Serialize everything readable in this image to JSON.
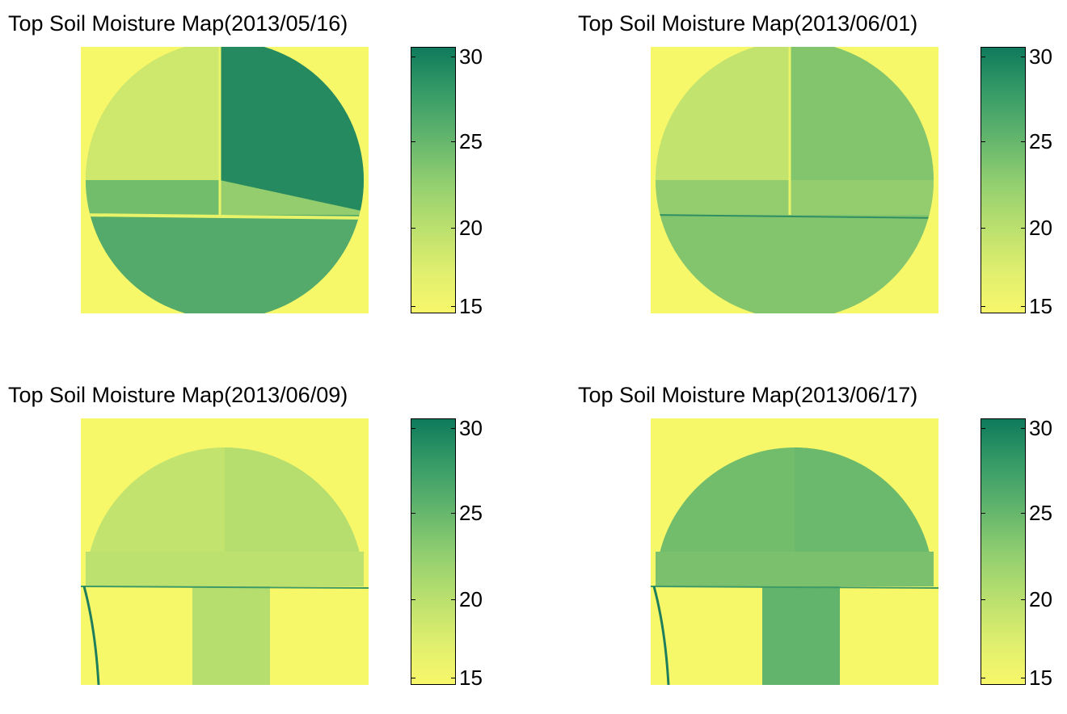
{
  "chart_data": [
    {
      "type": "heatmap",
      "title": "Top Soil Moisture Map(2013/05/16)",
      "colorbar": {
        "min": 14.5,
        "max": 30.5,
        "ticks": [
          "15",
          "20",
          "25",
          "30"
        ]
      },
      "colormap": [
        "#f7f76a",
        "#b8df6e",
        "#5fb36c",
        "#0f7a5c"
      ],
      "zones": {
        "circle": 22,
        "northeast": 29,
        "southhalf": 26,
        "strip": 24,
        "northwest": 18
      }
    },
    {
      "type": "heatmap",
      "title": "Top Soil Moisture Map(2013/06/01)",
      "colorbar": {
        "min": 14.5,
        "max": 30.5,
        "ticks": [
          "15",
          "20",
          "25",
          "30"
        ]
      },
      "colormap": [
        "#f7f76a",
        "#b8df6e",
        "#5fb36c",
        "#0f7a5c"
      ],
      "zones": {
        "circle": 20,
        "northeast": 23,
        "southhalf": 23,
        "strip": 22,
        "northwest": 19
      }
    },
    {
      "type": "heatmap",
      "title": "Top Soil Moisture Map(2013/06/09)",
      "colorbar": {
        "min": 14.5,
        "max": 30.5,
        "ticks": [
          "15",
          "20",
          "25",
          "30"
        ]
      },
      "colormap": [
        "#f7f76a",
        "#b8df6e",
        "#5fb36c",
        "#0f7a5c"
      ],
      "zones": {
        "northhalf": 19,
        "northeast": 20,
        "strip": 19.5,
        "southcenter": 20
      }
    },
    {
      "type": "heatmap",
      "title": "Top Soil Moisture Map(2013/06/17)",
      "colorbar": {
        "min": 14.5,
        "max": 30.5,
        "ticks": [
          "15",
          "20",
          "25",
          "30"
        ]
      },
      "colormap": [
        "#f7f76a",
        "#b8df6e",
        "#5fb36c",
        "#0f7a5c"
      ],
      "zones": {
        "northhalf": 24,
        "northeast": 24.5,
        "strip": 23.5,
        "southcenter": 25
      }
    }
  ]
}
